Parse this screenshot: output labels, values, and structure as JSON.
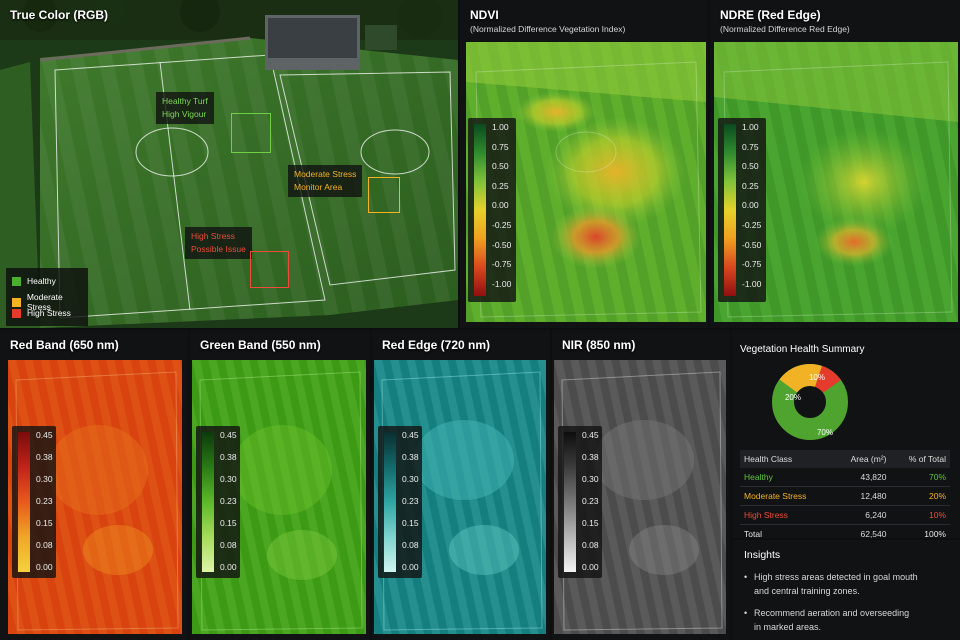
{
  "panels": {
    "rgb": {
      "title": "True Color (RGB)"
    },
    "ndvi": {
      "title": "NDVI",
      "subtitle": "(Normalized Difference Vegetation Index)"
    },
    "ndre": {
      "title": "NDRE (Red Edge)",
      "subtitle": "(Normalized Difference Red Edge)"
    },
    "red": {
      "title": "Red Band (650 nm)"
    },
    "green": {
      "title": "Green Band (550 nm)"
    },
    "rededge": {
      "title": "Red Edge (720 nm)"
    },
    "nir": {
      "title": "NIR (850 nm)"
    }
  },
  "annotations": {
    "healthy": {
      "line1": "Healthy Turf",
      "line2": "High Vigour",
      "color": "#7ed957"
    },
    "moderate": {
      "line1": "Moderate Stress",
      "line2": "Monitor Area",
      "color": "#f5b324"
    },
    "high": {
      "line1": "High Stress",
      "line2": "Possible Issue",
      "color": "#ef4b3a"
    }
  },
  "legend": {
    "healthy": {
      "label": "Healthy",
      "color": "#4caf2f"
    },
    "moderate": {
      "label": "Moderate Stress",
      "color": "#f5b324"
    },
    "high": {
      "label": "High Stress",
      "color": "#e53a2c"
    }
  },
  "index_scale": [
    "1.00",
    "0.75",
    "0.50",
    "0.25",
    "0.00",
    "-0.25",
    "-0.50",
    "-0.75",
    "-1.00"
  ],
  "band_scale": [
    "0.45",
    "0.38",
    "0.30",
    "0.23",
    "0.15",
    "0.08",
    "0.00"
  ],
  "summary": {
    "title": "Vegetation Health Summary",
    "donut_labels": {
      "high": "10%",
      "moderate": "20%",
      "healthy": "70%"
    },
    "table": {
      "headers": [
        "Health Class",
        "Area (m²)",
        "% of Total"
      ],
      "rows": [
        {
          "name": "Healthy",
          "area": "43,820",
          "pct": "70%",
          "color": "#5ec43d"
        },
        {
          "name": "Moderate Stress",
          "area": "12,480",
          "pct": "20%",
          "color": "#f5b324"
        },
        {
          "name": "High Stress",
          "area": "6,240",
          "pct": "10%",
          "color": "#ef4b3a"
        },
        {
          "name": "Total",
          "area": "62,540",
          "pct": "100%",
          "color": "#e8e8e8"
        }
      ]
    }
  },
  "insights": {
    "title": "Insights",
    "bullets": [
      "High stress areas detected in goal mouth and central training zones.",
      "Recommend aeration and overseeding in marked areas."
    ],
    "lines": [
      [
        "High stress areas detected in goal mouth",
        "and central training zones."
      ],
      [
        "Recommend aeration and overseeding",
        "in marked areas."
      ]
    ]
  }
}
